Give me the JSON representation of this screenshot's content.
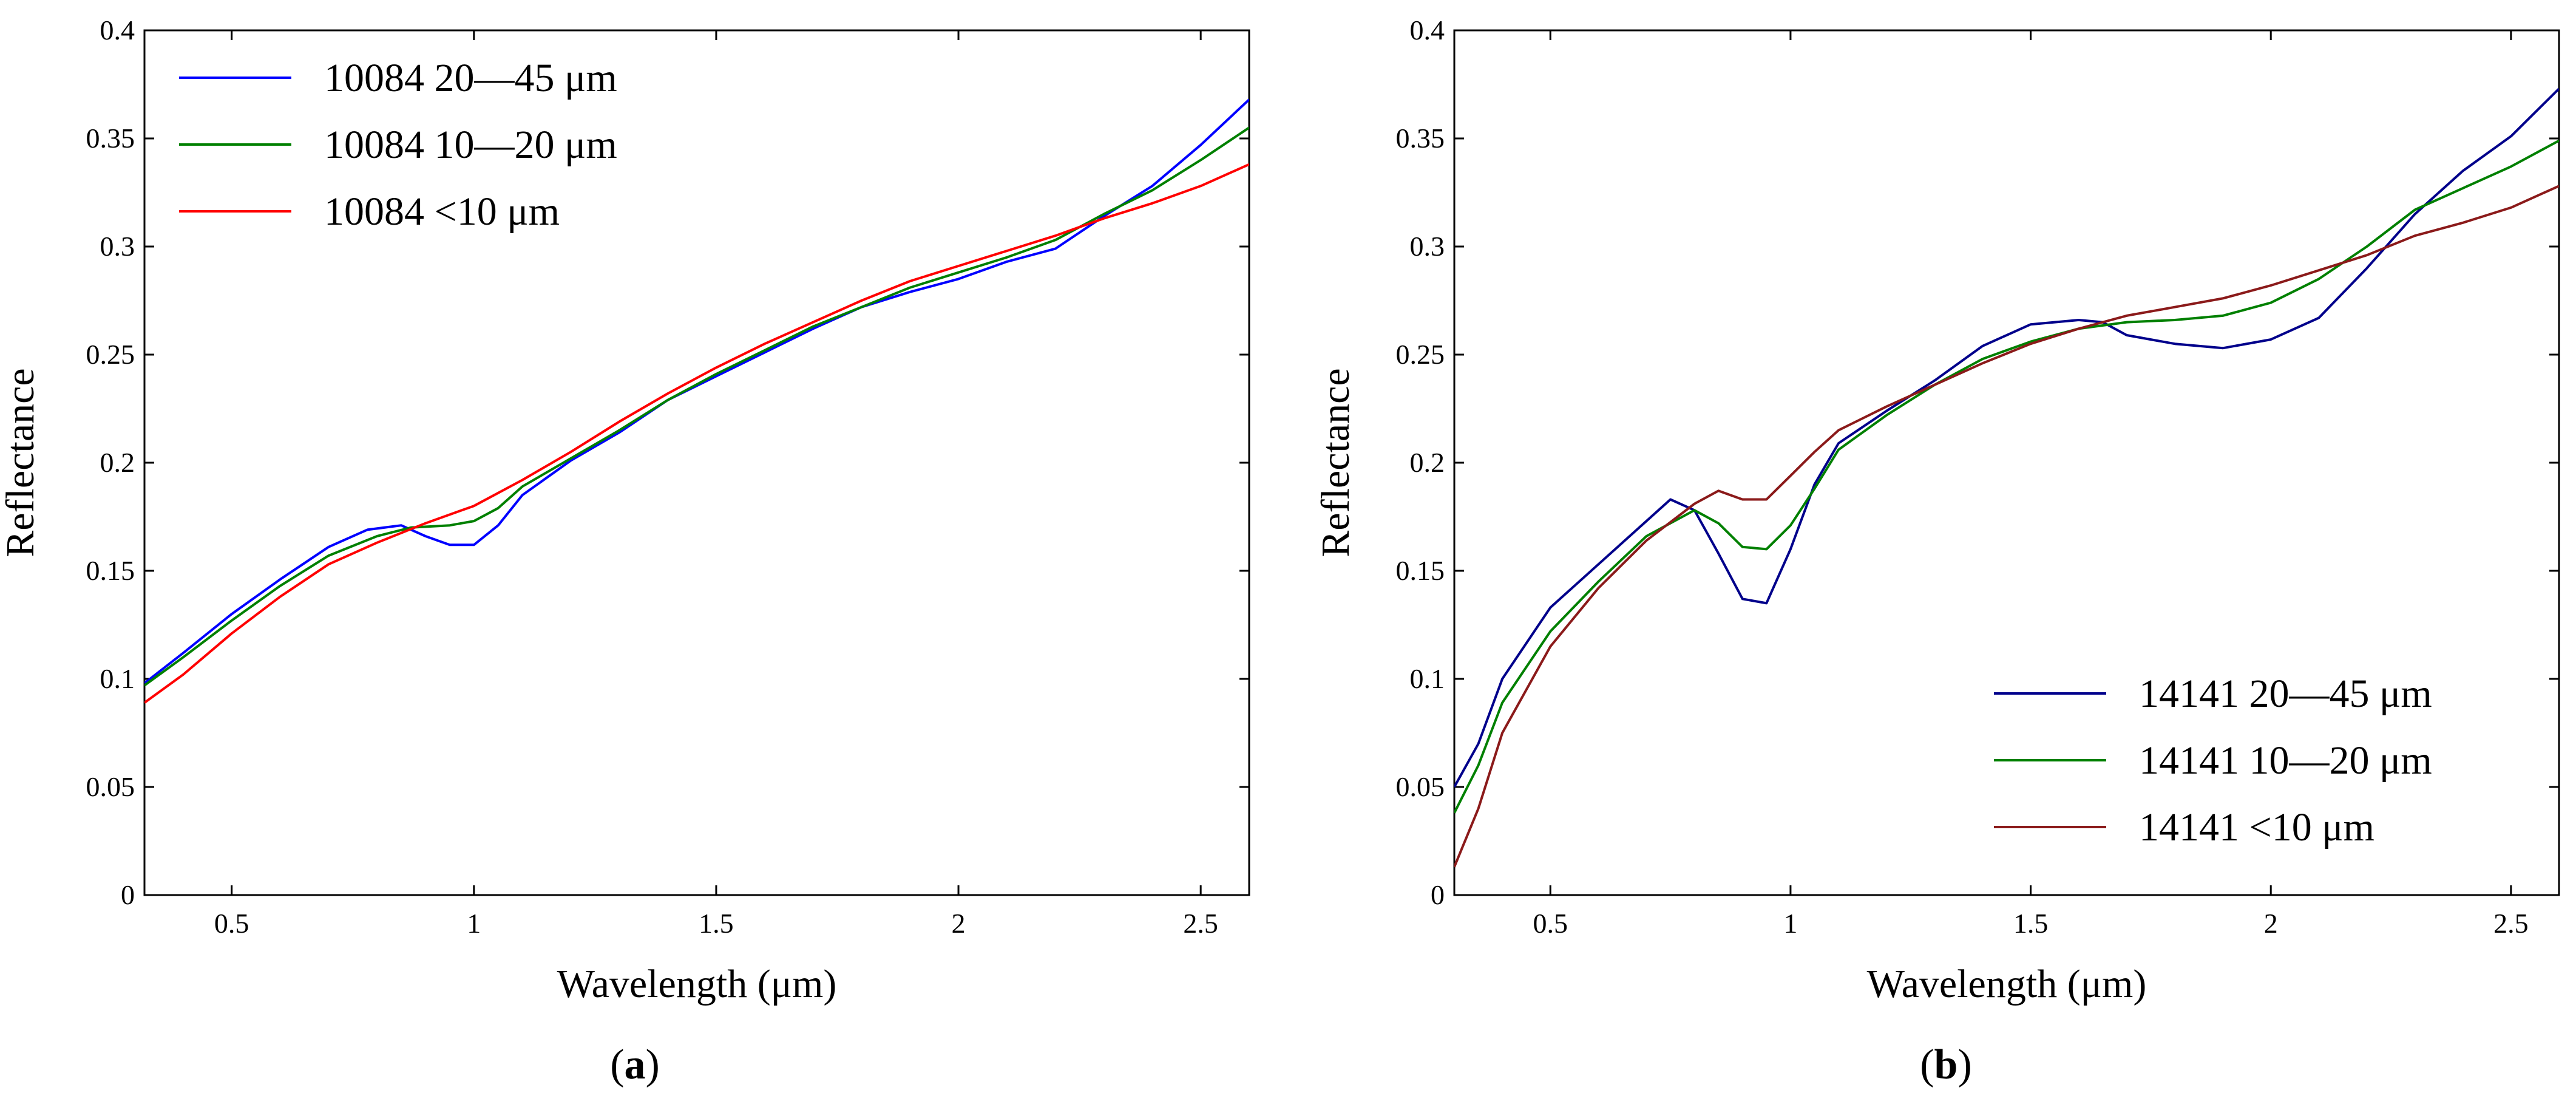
{
  "chart_data": [
    {
      "type": "line",
      "panel_label": "a",
      "title": "",
      "xlabel": "Wavelength (μm)",
      "ylabel": "Reflectance",
      "xlim": [
        0.32,
        2.6
      ],
      "ylim": [
        0,
        0.4
      ],
      "xticks": [
        0.5,
        1,
        1.5,
        2,
        2.5
      ],
      "xtick_labels": [
        "0.5",
        "1",
        "1.5",
        "2",
        "2.5"
      ],
      "yticks": [
        0,
        0.05,
        0.1,
        0.15,
        0.2,
        0.25,
        0.3,
        0.35,
        0.4
      ],
      "ytick_labels": [
        "0",
        "0.05",
        "0.1",
        "0.15",
        "0.2",
        "0.25",
        "0.3",
        "0.35",
        "0.4"
      ],
      "grid": false,
      "legend_position": "top-left",
      "series": [
        {
          "name": "10084  20—45 μm",
          "color": "#0000ff",
          "points": [
            [
              0.32,
              0.098
            ],
            [
              0.4,
              0.112
            ],
            [
              0.5,
              0.13
            ],
            [
              0.6,
              0.146
            ],
            [
              0.7,
              0.161
            ],
            [
              0.78,
              0.169
            ],
            [
              0.85,
              0.171
            ],
            [
              0.9,
              0.166
            ],
            [
              0.95,
              0.162
            ],
            [
              1.0,
              0.162
            ],
            [
              1.05,
              0.171
            ],
            [
              1.1,
              0.185
            ],
            [
              1.2,
              0.201
            ],
            [
              1.3,
              0.214
            ],
            [
              1.4,
              0.229
            ],
            [
              1.5,
              0.24
            ],
            [
              1.6,
              0.251
            ],
            [
              1.7,
              0.262
            ],
            [
              1.8,
              0.272
            ],
            [
              1.9,
              0.279
            ],
            [
              2.0,
              0.285
            ],
            [
              2.1,
              0.293
            ],
            [
              2.2,
              0.299
            ],
            [
              2.3,
              0.314
            ],
            [
              2.4,
              0.328
            ],
            [
              2.5,
              0.347
            ],
            [
              2.6,
              0.368
            ]
          ]
        },
        {
          "name": "10084  10—20 μm",
          "color": "#008000",
          "points": [
            [
              0.32,
              0.097
            ],
            [
              0.4,
              0.11
            ],
            [
              0.5,
              0.127
            ],
            [
              0.6,
              0.143
            ],
            [
              0.7,
              0.157
            ],
            [
              0.8,
              0.166
            ],
            [
              0.87,
              0.17
            ],
            [
              0.95,
              0.171
            ],
            [
              1.0,
              0.173
            ],
            [
              1.05,
              0.179
            ],
            [
              1.1,
              0.189
            ],
            [
              1.2,
              0.202
            ],
            [
              1.3,
              0.215
            ],
            [
              1.4,
              0.229
            ],
            [
              1.5,
              0.241
            ],
            [
              1.6,
              0.252
            ],
            [
              1.7,
              0.263
            ],
            [
              1.8,
              0.272
            ],
            [
              1.9,
              0.281
            ],
            [
              2.0,
              0.288
            ],
            [
              2.1,
              0.295
            ],
            [
              2.2,
              0.303
            ],
            [
              2.3,
              0.315
            ],
            [
              2.4,
              0.326
            ],
            [
              2.5,
              0.34
            ],
            [
              2.6,
              0.355
            ]
          ]
        },
        {
          "name": "10084  <10 μm",
          "color": "#ff0000",
          "points": [
            [
              0.32,
              0.089
            ],
            [
              0.4,
              0.102
            ],
            [
              0.5,
              0.121
            ],
            [
              0.6,
              0.138
            ],
            [
              0.7,
              0.153
            ],
            [
              0.8,
              0.163
            ],
            [
              0.9,
              0.172
            ],
            [
              1.0,
              0.18
            ],
            [
              1.1,
              0.192
            ],
            [
              1.2,
              0.205
            ],
            [
              1.3,
              0.219
            ],
            [
              1.4,
              0.232
            ],
            [
              1.5,
              0.244
            ],
            [
              1.6,
              0.255
            ],
            [
              1.7,
              0.265
            ],
            [
              1.8,
              0.275
            ],
            [
              1.9,
              0.284
            ],
            [
              2.0,
              0.291
            ],
            [
              2.1,
              0.298
            ],
            [
              2.2,
              0.305
            ],
            [
              2.3,
              0.313
            ],
            [
              2.4,
              0.32
            ],
            [
              2.5,
              0.328
            ],
            [
              2.6,
              0.338
            ]
          ]
        }
      ]
    },
    {
      "type": "line",
      "panel_label": "b",
      "title": "",
      "xlabel": "Wavelength (μm)",
      "ylabel": "Reflectance",
      "xlim": [
        0.3,
        2.6
      ],
      "ylim": [
        0,
        0.4
      ],
      "xticks": [
        0.5,
        1,
        1.5,
        2,
        2.5
      ],
      "xtick_labels": [
        "0.5",
        "1",
        "1.5",
        "2",
        "2.5"
      ],
      "yticks": [
        0,
        0.05,
        0.1,
        0.15,
        0.2,
        0.25,
        0.3,
        0.35,
        0.4
      ],
      "ytick_labels": [
        "0",
        "0.05",
        "0.1",
        "0.15",
        "0.2",
        "0.25",
        "0.3",
        "0.35",
        "0.4"
      ],
      "grid": false,
      "legend_position": "bottom-right",
      "series": [
        {
          "name": "14141   20—45 μm",
          "color": "#00008b",
          "points": [
            [
              0.3,
              0.05
            ],
            [
              0.35,
              0.07
            ],
            [
              0.4,
              0.1
            ],
            [
              0.5,
              0.133
            ],
            [
              0.6,
              0.153
            ],
            [
              0.7,
              0.173
            ],
            [
              0.75,
              0.183
            ],
            [
              0.8,
              0.178
            ],
            [
              0.85,
              0.158
            ],
            [
              0.9,
              0.137
            ],
            [
              0.95,
              0.135
            ],
            [
              1.0,
              0.16
            ],
            [
              1.05,
              0.19
            ],
            [
              1.1,
              0.209
            ],
            [
              1.2,
              0.224
            ],
            [
              1.3,
              0.238
            ],
            [
              1.4,
              0.254
            ],
            [
              1.5,
              0.264
            ],
            [
              1.6,
              0.266
            ],
            [
              1.65,
              0.265
            ],
            [
              1.7,
              0.259
            ],
            [
              1.8,
              0.255
            ],
            [
              1.9,
              0.253
            ],
            [
              2.0,
              0.257
            ],
            [
              2.1,
              0.267
            ],
            [
              2.2,
              0.29
            ],
            [
              2.3,
              0.315
            ],
            [
              2.4,
              0.335
            ],
            [
              2.5,
              0.351
            ],
            [
              2.6,
              0.373
            ]
          ]
        },
        {
          "name": "14141   10—20 μm",
          "color": "#008000",
          "points": [
            [
              0.3,
              0.038
            ],
            [
              0.35,
              0.06
            ],
            [
              0.4,
              0.089
            ],
            [
              0.5,
              0.122
            ],
            [
              0.6,
              0.145
            ],
            [
              0.7,
              0.166
            ],
            [
              0.8,
              0.178
            ],
            [
              0.85,
              0.172
            ],
            [
              0.9,
              0.161
            ],
            [
              0.95,
              0.16
            ],
            [
              1.0,
              0.171
            ],
            [
              1.05,
              0.188
            ],
            [
              1.1,
              0.206
            ],
            [
              1.2,
              0.222
            ],
            [
              1.3,
              0.236
            ],
            [
              1.4,
              0.248
            ],
            [
              1.5,
              0.256
            ],
            [
              1.6,
              0.262
            ],
            [
              1.7,
              0.265
            ],
            [
              1.8,
              0.266
            ],
            [
              1.9,
              0.268
            ],
            [
              2.0,
              0.274
            ],
            [
              2.1,
              0.285
            ],
            [
              2.2,
              0.3
            ],
            [
              2.3,
              0.317
            ],
            [
              2.4,
              0.327
            ],
            [
              2.5,
              0.337
            ],
            [
              2.6,
              0.349
            ]
          ]
        },
        {
          "name": "14141  <10 μm",
          "color": "#8b1a1a",
          "points": [
            [
              0.3,
              0.013
            ],
            [
              0.35,
              0.04
            ],
            [
              0.4,
              0.075
            ],
            [
              0.5,
              0.115
            ],
            [
              0.6,
              0.142
            ],
            [
              0.7,
              0.164
            ],
            [
              0.8,
              0.181
            ],
            [
              0.85,
              0.187
            ],
            [
              0.9,
              0.183
            ],
            [
              0.95,
              0.183
            ],
            [
              1.0,
              0.194
            ],
            [
              1.05,
              0.205
            ],
            [
              1.1,
              0.215
            ],
            [
              1.2,
              0.226
            ],
            [
              1.3,
              0.236
            ],
            [
              1.4,
              0.246
            ],
            [
              1.5,
              0.255
            ],
            [
              1.6,
              0.262
            ],
            [
              1.7,
              0.268
            ],
            [
              1.8,
              0.272
            ],
            [
              1.9,
              0.276
            ],
            [
              2.0,
              0.282
            ],
            [
              2.1,
              0.289
            ],
            [
              2.2,
              0.296
            ],
            [
              2.3,
              0.305
            ],
            [
              2.4,
              0.311
            ],
            [
              2.5,
              0.318
            ],
            [
              2.6,
              0.328
            ]
          ]
        }
      ]
    }
  ]
}
